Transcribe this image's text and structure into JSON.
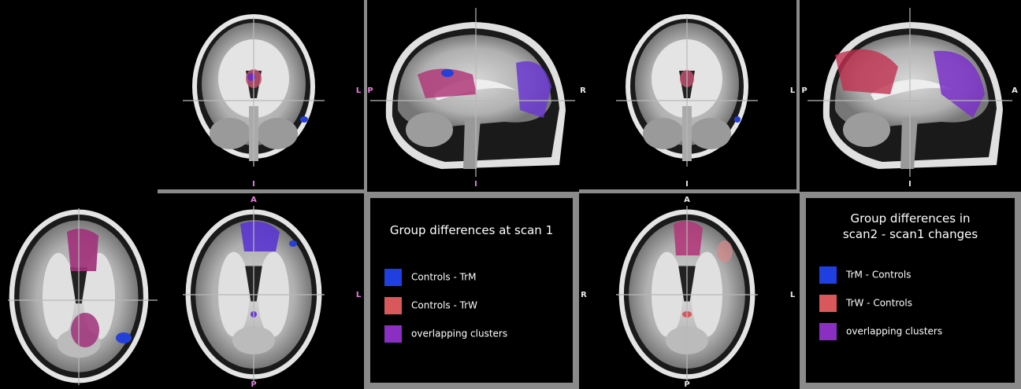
{
  "views": [
    {
      "labels": [
        "L",
        "I"
      ]
    },
    {
      "labels": [
        "P",
        "I"
      ]
    },
    {
      "labels": [
        "R",
        "L",
        "I"
      ]
    },
    {
      "labels": [
        "P",
        "A",
        "I"
      ]
    },
    {
      "labels": [
        "A",
        "L",
        "P"
      ]
    },
    {
      "labels": [
        "A",
        "R",
        "L",
        "P"
      ]
    }
  ],
  "legends": [
    {
      "title_lines": [
        "Group differences at scan 1"
      ],
      "items": [
        {
          "label": "Controls - TrM",
          "color": "#1f3fe0"
        },
        {
          "label": "Controls - TrW",
          "color": "#d9585c"
        },
        {
          "label": "overlapping clusters",
          "color": "#8a2fc2"
        }
      ]
    },
    {
      "title_lines": [
        "Group differences in",
        "scan2 - scan1 changes"
      ],
      "items": [
        {
          "label": "TrM - Controls",
          "color": "#1f3fe0"
        },
        {
          "label": "TrW - Controls",
          "color": "#d9585c"
        },
        {
          "label": "overlapping clusters",
          "color": "#8a2fc2"
        }
      ]
    }
  ]
}
